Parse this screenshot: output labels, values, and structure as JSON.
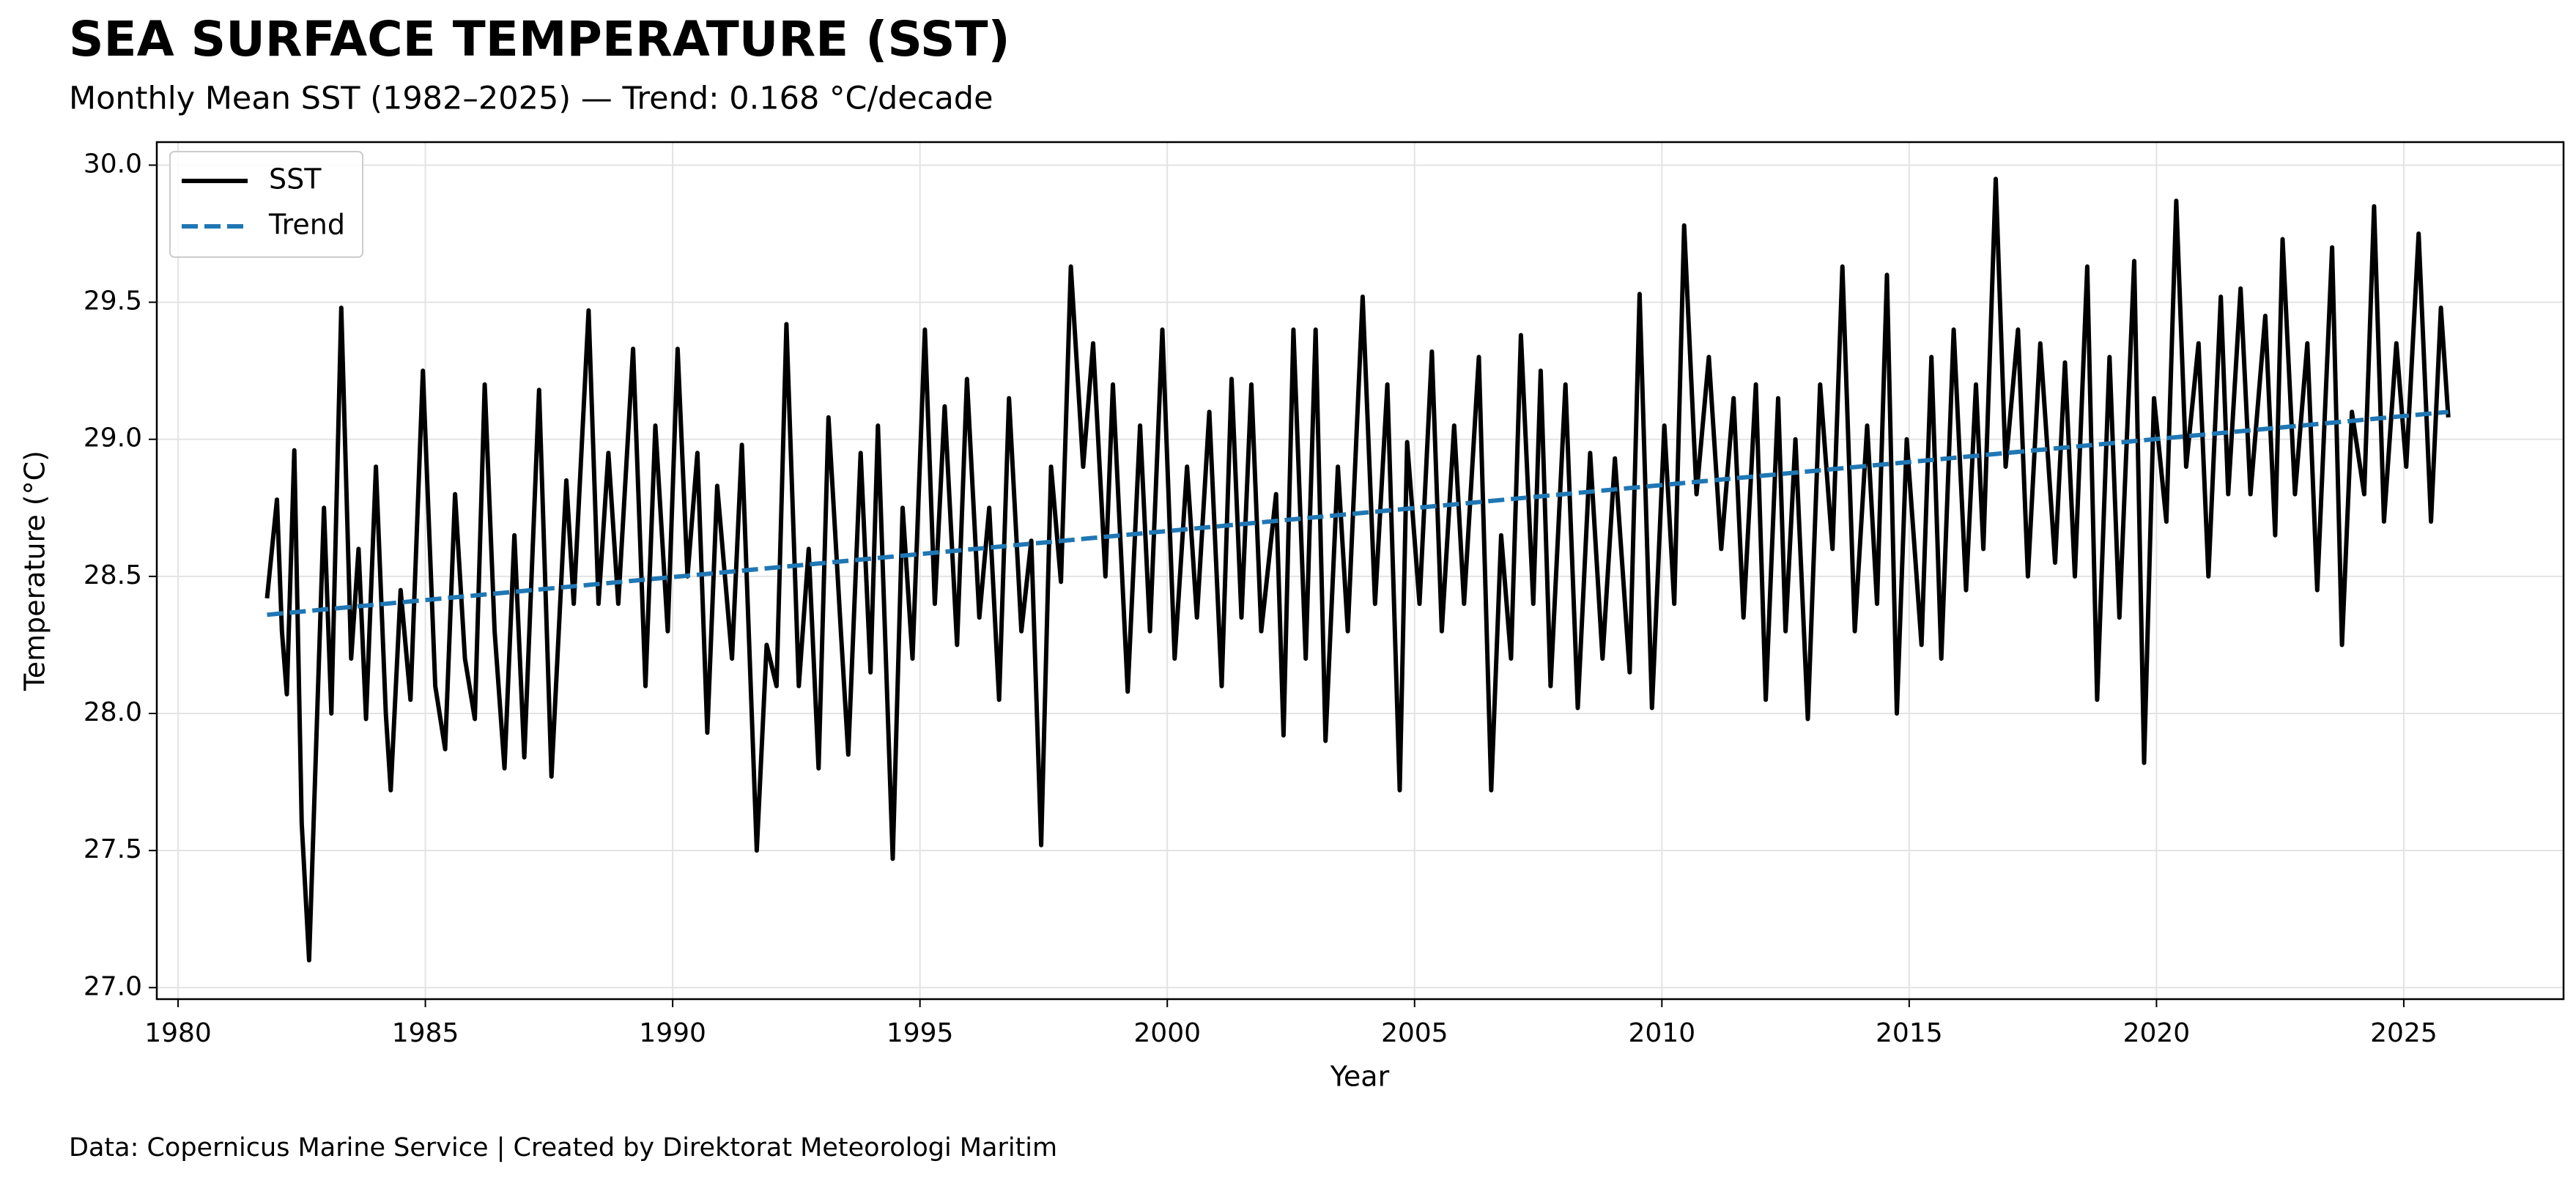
{
  "chart_data": {
    "type": "line",
    "title": "SEA SURFACE TEMPERATURE (SST)",
    "subtitle": "Monthly Mean SST (1982–2025) — Trend: 0.168 °C/decade",
    "x_label": "Year",
    "y_label": "Temperature (°C)",
    "footer": "Data: Copernicus Marine Service | Created by Direktorat Meteorologi Maritim",
    "xlim": [
      1979.57,
      2028.23
    ],
    "ylim": [
      26.958,
      30.084
    ],
    "xticks": [
      1980,
      1985,
      1990,
      1995,
      2000,
      2005,
      2010,
      2015,
      2020,
      2025
    ],
    "yticks": [
      {
        "value": 27,
        "label": "27.0"
      },
      27.5,
      {
        "value": 28,
        "label": "28.0"
      },
      28.5,
      {
        "value": 29,
        "label": "29.0"
      },
      29.5,
      {
        "value": 30,
        "label": "30.0"
      }
    ],
    "grid": true,
    "legend": "upper left",
    "series": [
      {
        "name": "SST",
        "color": "#000000",
        "linestyle": "solid",
        "x": [
          1981.8,
          1982.0,
          1982.1,
          1982.2,
          1982.35,
          1982.5,
          1982.65,
          1982.85,
          1982.95,
          1983.1,
          1983.3,
          1983.5,
          1983.65,
          1983.8,
          1984.0,
          1984.2,
          1984.3,
          1984.5,
          1984.7,
          1984.95,
          1985.2,
          1985.4,
          1985.6,
          1985.8,
          1986.0,
          1986.2,
          1986.4,
          1986.6,
          1986.8,
          1987.0,
          1987.3,
          1987.55,
          1987.85,
          1988.0,
          1988.3,
          1988.5,
          1988.7,
          1988.9,
          1989.2,
          1989.45,
          1989.65,
          1989.9,
          1990.1,
          1990.3,
          1990.5,
          1990.7,
          1990.9,
          1991.2,
          1991.4,
          1991.7,
          1991.9,
          1992.1,
          1992.3,
          1992.55,
          1992.75,
          1992.95,
          1993.15,
          1993.4,
          1993.55,
          1993.8,
          1994.0,
          1994.15,
          1994.45,
          1994.65,
          1994.85,
          1995.1,
          1995.3,
          1995.5,
          1995.75,
          1995.95,
          1996.2,
          1996.4,
          1996.6,
          1996.8,
          1997.05,
          1997.25,
          1997.45,
          1997.65,
          1997.85,
          1998.05,
          1998.3,
          1998.5,
          1998.75,
          1998.9,
          1999.2,
          1999.45,
          1999.65,
          1999.9,
          2000.15,
          2000.4,
          2000.6,
          2000.85,
          2001.1,
          2001.3,
          2001.5,
          2001.7,
          2001.9,
          2002.2,
          2002.35,
          2002.55,
          2002.8,
          2003.0,
          2003.2,
          2003.45,
          2003.65,
          2003.95,
          2004.2,
          2004.45,
          2004.7,
          2004.85,
          2005.1,
          2005.35,
          2005.55,
          2005.8,
          2006.0,
          2006.3,
          2006.55,
          2006.75,
          2006.95,
          2007.15,
          2007.4,
          2007.55,
          2007.75,
          2008.05,
          2008.3,
          2008.55,
          2008.8,
          2009.05,
          2009.35,
          2009.55,
          2009.8,
          2010.05,
          2010.25,
          2010.45,
          2010.7,
          2010.95,
          2011.2,
          2011.45,
          2011.65,
          2011.9,
          2012.1,
          2012.35,
          2012.5,
          2012.7,
          2012.95,
          2013.2,
          2013.45,
          2013.65,
          2013.9,
          2014.15,
          2014.35,
          2014.55,
          2014.75,
          2014.95,
          2015.25,
          2015.45,
          2015.65,
          2015.9,
          2016.15,
          2016.35,
          2016.5,
          2016.75,
          2016.95,
          2017.2,
          2017.4,
          2017.65,
          2017.95,
          2018.15,
          2018.35,
          2018.6,
          2018.8,
          2019.05,
          2019.25,
          2019.55,
          2019.75,
          2019.95,
          2020.2,
          2020.4,
          2020.6,
          2020.85,
          2021.05,
          2021.3,
          2021.45,
          2021.7,
          2021.9,
          2022.2,
          2022.4,
          2022.55,
          2022.8,
          2023.05,
          2023.25,
          2023.55,
          2023.75,
          2023.95,
          2024.2,
          2024.4,
          2024.6,
          2024.85,
          2025.05,
          2025.3,
          2025.55,
          2025.75,
          2025.9
        ],
        "values": [
          28.42,
          28.78,
          28.3,
          28.07,
          28.96,
          27.6,
          27.1,
          28.2,
          28.75,
          28.0,
          29.48,
          28.2,
          28.6,
          27.98,
          28.9,
          28.0,
          27.72,
          28.45,
          28.05,
          29.25,
          28.1,
          27.87,
          28.8,
          28.2,
          27.98,
          29.2,
          28.3,
          27.8,
          28.65,
          27.84,
          29.18,
          27.77,
          28.85,
          28.4,
          29.47,
          28.4,
          28.95,
          28.4,
          29.33,
          28.1,
          29.05,
          28.3,
          29.33,
          28.5,
          28.95,
          27.93,
          28.83,
          28.2,
          28.98,
          27.5,
          28.25,
          28.1,
          29.42,
          28.1,
          28.6,
          27.8,
          29.08,
          28.3,
          27.85,
          28.95,
          28.15,
          29.05,
          27.47,
          28.75,
          28.2,
          29.4,
          28.4,
          29.12,
          28.25,
          29.22,
          28.35,
          28.75,
          28.05,
          29.15,
          28.3,
          28.63,
          27.52,
          28.9,
          28.48,
          29.63,
          28.9,
          29.35,
          28.5,
          29.2,
          28.08,
          29.05,
          28.3,
          29.4,
          28.2,
          28.9,
          28.35,
          29.1,
          28.1,
          29.22,
          28.35,
          29.2,
          28.3,
          28.8,
          27.92,
          29.4,
          28.2,
          29.4,
          27.9,
          28.9,
          28.3,
          29.52,
          28.4,
          29.2,
          27.72,
          28.99,
          28.4,
          29.32,
          28.3,
          29.05,
          28.4,
          29.3,
          27.72,
          28.65,
          28.2,
          29.38,
          28.4,
          29.25,
          28.1,
          29.2,
          28.02,
          28.95,
          28.2,
          28.93,
          28.15,
          29.53,
          28.02,
          29.05,
          28.4,
          29.78,
          28.8,
          29.3,
          28.6,
          29.15,
          28.35,
          29.2,
          28.05,
          29.15,
          28.3,
          29.0,
          27.98,
          29.2,
          28.6,
          29.63,
          28.3,
          29.05,
          28.4,
          29.6,
          28.0,
          29.0,
          28.25,
          29.3,
          28.2,
          29.4,
          28.45,
          29.2,
          28.6,
          29.95,
          28.9,
          29.4,
          28.5,
          29.35,
          28.55,
          29.28,
          28.5,
          29.63,
          28.05,
          29.3,
          28.35,
          29.65,
          27.82,
          29.15,
          28.7,
          29.87,
          28.9,
          29.35,
          28.5,
          29.52,
          28.8,
          29.55,
          28.8,
          29.45,
          28.65,
          29.73,
          28.8,
          29.35,
          28.45,
          29.7,
          28.25,
          29.1,
          28.8,
          29.85,
          28.7,
          29.35,
          28.9,
          29.75,
          28.7,
          29.48,
          29.08
        ]
      },
      {
        "name": "Trend",
        "color": "#1f77b4",
        "linestyle": "dashed",
        "x": [
          1981.8,
          2025.9
        ],
        "values": [
          28.36,
          29.1
        ]
      }
    ]
  }
}
